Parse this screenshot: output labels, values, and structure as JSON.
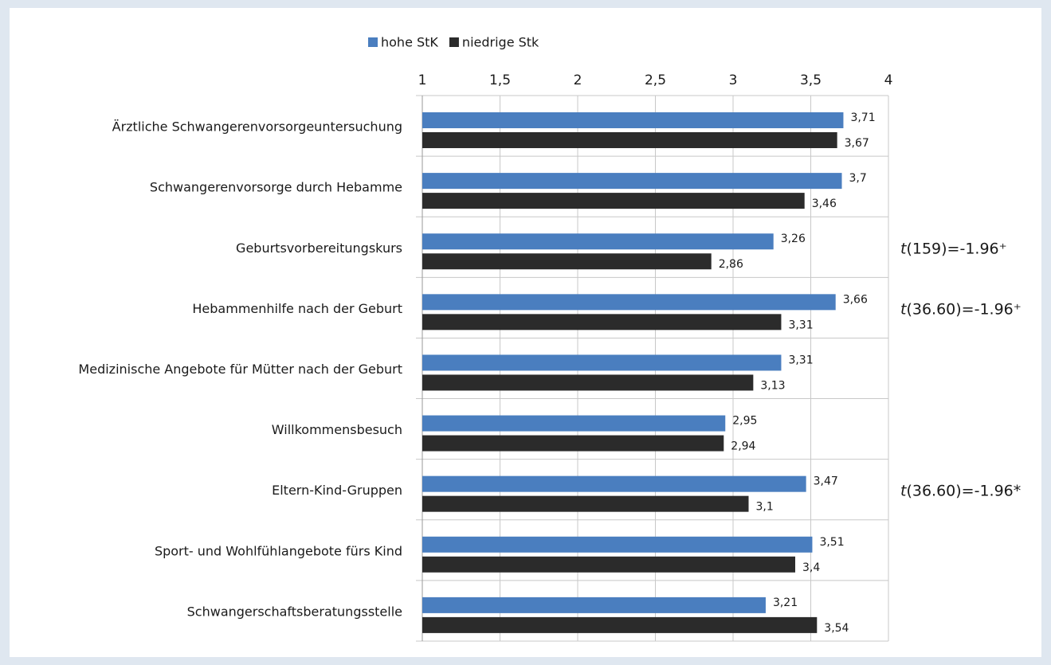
{
  "chart_data": {
    "type": "hbar",
    "categories": [
      "Ärztliche Schwangerenvorsorgeuntersuchung",
      "Schwangerenvorsorge durch Hebamme",
      "Geburtsvorbereitungskurs",
      "Hebammenhilfe nach der Geburt",
      "Medizinische Angebote für Mütter nach der Geburt",
      "Willkommensbesuch",
      "Eltern-Kind-Gruppen",
      "Sport- und Wohlfühlangebote fürs Kind",
      "Schwangerschaftsberatungsstelle"
    ],
    "series": [
      {
        "name": "hohe StK",
        "color": "#4a7ebf",
        "values": [
          3.71,
          3.7,
          3.26,
          3.66,
          3.31,
          2.95,
          3.47,
          3.51,
          3.21
        ],
        "value_labels": [
          "3,71",
          "3,7",
          "3,26",
          "3,66",
          "3,31",
          "2,95",
          "3,47",
          "3,51",
          "3,21"
        ]
      },
      {
        "name": "niedrige Stk",
        "color": "#2b2b2b",
        "values": [
          3.67,
          3.46,
          2.86,
          3.31,
          3.13,
          2.94,
          3.1,
          3.4,
          3.54
        ],
        "value_labels": [
          "3,67",
          "3,46",
          "2,86",
          "3,31",
          "3,13",
          "2,94",
          "3,1",
          "3,4",
          "3,54"
        ]
      }
    ],
    "xlim": [
      1,
      4
    ],
    "xticks": [
      1,
      {
        "value": 1.5,
        "label": "1,5"
      },
      2,
      {
        "value": 2.5,
        "label": "2,5"
      },
      3,
      {
        "value": 3.5,
        "label": "3,5"
      },
      4
    ],
    "annotations": [
      null,
      null,
      "t(159)=-1.96⁺",
      "t(36.60)=-1.96⁺",
      null,
      null,
      "t(36.60)=-1.96*",
      null,
      null
    ],
    "grid": true,
    "legend": "top"
  }
}
